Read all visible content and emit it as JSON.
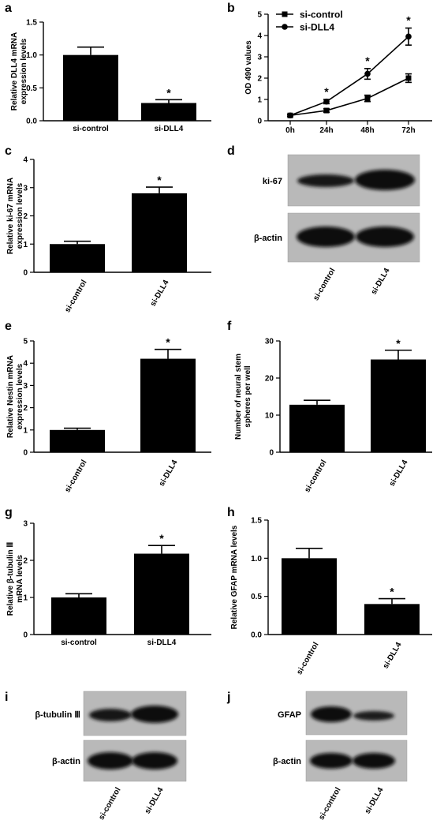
{
  "panels": {
    "a": "a",
    "b": "b",
    "c": "c",
    "d": "d",
    "e": "e",
    "f": "f",
    "g": "g",
    "h": "h",
    "i": "i",
    "j": "j"
  },
  "chart_data": [
    {
      "panel": "a",
      "type": "bar",
      "categories": [
        "si-control",
        "si-DLL4"
      ],
      "values": [
        1.0,
        0.27
      ],
      "errors": [
        0.12,
        0.05
      ],
      "significance": [
        "",
        "*"
      ],
      "ylabel": [
        "Relative DLL4 mRNA",
        "expression levels"
      ],
      "ylim": [
        0,
        1.5
      ],
      "yticks": [
        "0.0",
        "0.5",
        "1.0",
        "1.5"
      ],
      "rotated_categories": false
    },
    {
      "panel": "b",
      "type": "line",
      "x": [
        "0h",
        "24h",
        "48h",
        "72h"
      ],
      "series": [
        {
          "name": "si-control",
          "marker": "square",
          "values": [
            0.25,
            0.48,
            1.05,
            2.0
          ],
          "errors": [
            0.05,
            0.08,
            0.15,
            0.2
          ]
        },
        {
          "name": "si-DLL4",
          "marker": "circle",
          "values": [
            0.25,
            0.9,
            2.2,
            3.95
          ],
          "errors": [
            0.05,
            0.1,
            0.25,
            0.4
          ]
        }
      ],
      "significance": [
        "",
        "*",
        "*",
        "*"
      ],
      "ylabel": "OD 490 values",
      "ylim": [
        0,
        5
      ],
      "yticks": [
        "0",
        "1",
        "2",
        "3",
        "4",
        "5"
      ],
      "legend": "top-left"
    },
    {
      "panel": "c",
      "type": "bar",
      "categories": [
        "si-control",
        "si-DLL4"
      ],
      "values": [
        1.0,
        2.8
      ],
      "errors": [
        0.1,
        0.22
      ],
      "significance": [
        "",
        "*"
      ],
      "ylabel": [
        "Relative ki-67 mRNA",
        "expression levels"
      ],
      "ylim": [
        0,
        4
      ],
      "yticks": [
        "0",
        "1",
        "2",
        "3",
        "4"
      ],
      "rotated_categories": true
    },
    {
      "panel": "e",
      "type": "bar",
      "categories": [
        "si-control",
        "si-DLL4"
      ],
      "values": [
        1.0,
        4.2
      ],
      "errors": [
        0.08,
        0.42
      ],
      "significance": [
        "",
        "*"
      ],
      "ylabel": [
        "Relative Nestin mRNA",
        "expression levels"
      ],
      "ylim": [
        0,
        5
      ],
      "yticks": [
        "0",
        "1",
        "2",
        "3",
        "4",
        "5"
      ],
      "rotated_categories": true
    },
    {
      "panel": "f",
      "type": "bar",
      "categories": [
        "si-control",
        "si-DLL4"
      ],
      "values": [
        12.8,
        25.0
      ],
      "errors": [
        1.2,
        2.5
      ],
      "significance": [
        "",
        "*"
      ],
      "ylabel": [
        "Number of neural stem",
        "spheres per well"
      ],
      "ylim": [
        0,
        30
      ],
      "yticks": [
        "0",
        "10",
        "20",
        "30"
      ],
      "rotated_categories": true
    },
    {
      "panel": "g",
      "type": "bar",
      "categories": [
        "si-control",
        "si-DLL4"
      ],
      "values": [
        1.0,
        2.18
      ],
      "errors": [
        0.1,
        0.22
      ],
      "significance": [
        "",
        "*"
      ],
      "ylabel": [
        "Relative β-tubulin Ⅲ",
        "mRNA levels"
      ],
      "ylim": [
        0,
        3
      ],
      "yticks": [
        "0",
        "1",
        "2",
        "3"
      ],
      "rotated_categories": false
    },
    {
      "panel": "h",
      "type": "bar",
      "categories": [
        "si-control",
        "si-DLL4"
      ],
      "values": [
        1.0,
        0.4
      ],
      "errors": [
        0.13,
        0.07
      ],
      "significance": [
        "",
        "*"
      ],
      "ylabel": [
        "Relative GFAP mRNA levels"
      ],
      "ylim": [
        0,
        1.5
      ],
      "yticks": [
        "0.0",
        "0.5",
        "1.0",
        "1.5"
      ],
      "rotated_categories": true
    }
  ],
  "blots": {
    "d": {
      "rows": [
        "ki-67",
        "β-actin"
      ],
      "lanes": [
        "si-control",
        "si-DLL4"
      ]
    },
    "i": {
      "rows": [
        "β-tubulin Ⅲ",
        "β-actin"
      ],
      "lanes": [
        "si-control",
        "si-DLL4"
      ]
    },
    "j": {
      "rows": [
        "GFAP",
        "β-actin"
      ],
      "lanes": [
        "si-control",
        "si-DLL4"
      ]
    }
  }
}
